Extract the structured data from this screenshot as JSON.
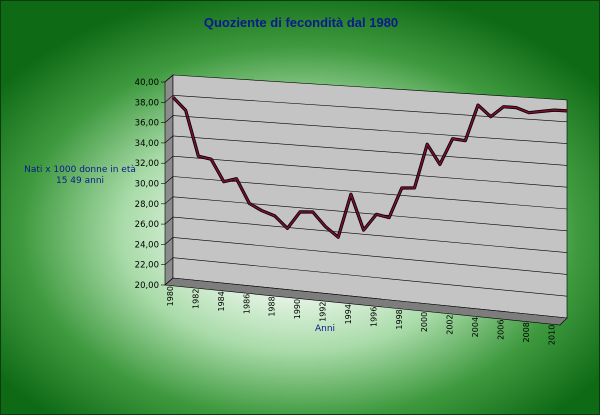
{
  "chart_data": {
    "type": "line",
    "title": "Quoziente di fecondità dal 1980",
    "xlabel": "Anni",
    "ylabel": "Nati x 1000 donne in età 15 49 anni",
    "ylim": [
      20,
      40
    ],
    "y_ticks": [
      "20,00",
      "22,00",
      "24,00",
      "26,00",
      "28,00",
      "30,00",
      "32,00",
      "34,00",
      "36,00",
      "38,00",
      "40,00"
    ],
    "x_tick_labels": [
      "1980",
      "1982",
      "1984",
      "1986",
      "1988",
      "1990",
      "1992",
      "1994",
      "1996",
      "1998",
      "2000",
      "2002",
      "2004",
      "2006",
      "2008",
      "2010"
    ],
    "grid": true,
    "legend": "none",
    "three_d": true,
    "series": [
      {
        "color": "#7a1030",
        "x": [
          1980,
          1981,
          1982,
          1983,
          1984,
          1985,
          1986,
          1987,
          1988,
          1989,
          1990,
          1991,
          1992,
          1993,
          1994,
          1995,
          1996,
          1997,
          1998,
          1999,
          2000,
          2001,
          2002,
          2003,
          2004,
          2005,
          2006,
          2007,
          2008,
          2009,
          2010,
          2011
        ],
        "values": [
          37.8,
          36.6,
          32.2,
          32.0,
          29.9,
          30.3,
          28.0,
          27.4,
          27.0,
          25.9,
          27.6,
          27.7,
          26.4,
          25.5,
          29.7,
          26.4,
          28.0,
          27.8,
          30.7,
          30.8,
          35.0,
          33.2,
          35.7,
          35.6,
          39.0,
          38.0,
          39.0,
          39.0,
          38.6,
          38.8,
          39.0,
          39.0
        ]
      }
    ]
  }
}
